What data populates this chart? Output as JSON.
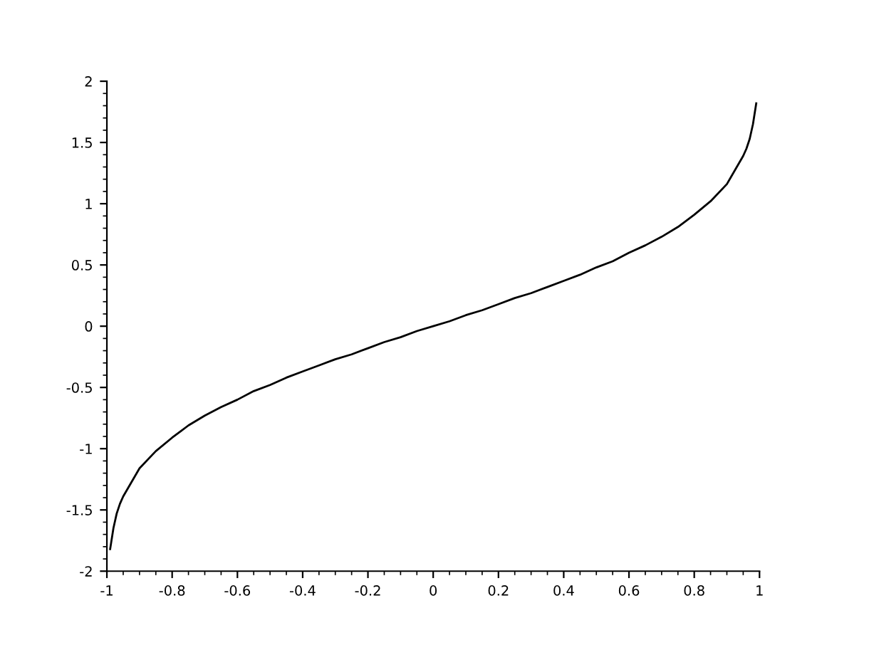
{
  "chart_data": {
    "type": "line",
    "color": "#000000",
    "x": [
      -0.99,
      -0.98,
      -0.97,
      -0.96,
      -0.95,
      -0.9,
      -0.85,
      -0.8,
      -0.75,
      -0.7,
      -0.65,
      -0.6,
      -0.55,
      -0.5,
      -0.45,
      -0.4,
      -0.35,
      -0.3,
      -0.25,
      -0.2,
      -0.15,
      -0.1,
      -0.05,
      0,
      0.05,
      0.1,
      0.15,
      0.2,
      0.25,
      0.3,
      0.35,
      0.4,
      0.45,
      0.5,
      0.55,
      0.6,
      0.65,
      0.7,
      0.75,
      0.8,
      0.85,
      0.9,
      0.95,
      0.96,
      0.97,
      0.98,
      0.99
    ],
    "values": [
      -1.82,
      -1.65,
      -1.53,
      -1.45,
      -1.39,
      -1.16,
      -1.02,
      -0.91,
      -0.81,
      -0.73,
      -0.66,
      -0.6,
      -0.53,
      -0.48,
      -0.42,
      -0.37,
      -0.32,
      -0.27,
      -0.23,
      -0.18,
      -0.13,
      -0.09,
      -0.04,
      0,
      0.04,
      0.09,
      0.13,
      0.18,
      0.23,
      0.27,
      0.32,
      0.37,
      0.42,
      0.48,
      0.53,
      0.6,
      0.66,
      0.73,
      0.81,
      0.91,
      1.02,
      1.16,
      1.39,
      1.45,
      1.53,
      1.65,
      1.82
    ],
    "xlim": [
      -1,
      1
    ],
    "xticks": [
      -1,
      -0.8,
      -0.6,
      -0.4,
      -0.2,
      0,
      0.2,
      0.4,
      0.6,
      0.8,
      1
    ],
    "ylim": [
      -2,
      2
    ],
    "yticks": [
      -2,
      -1.5,
      -1,
      -0.5,
      0,
      0.5,
      1,
      1.5,
      2
    ],
    "grid": false,
    "legend": false,
    "marker": "none",
    "line_style": "solid"
  }
}
